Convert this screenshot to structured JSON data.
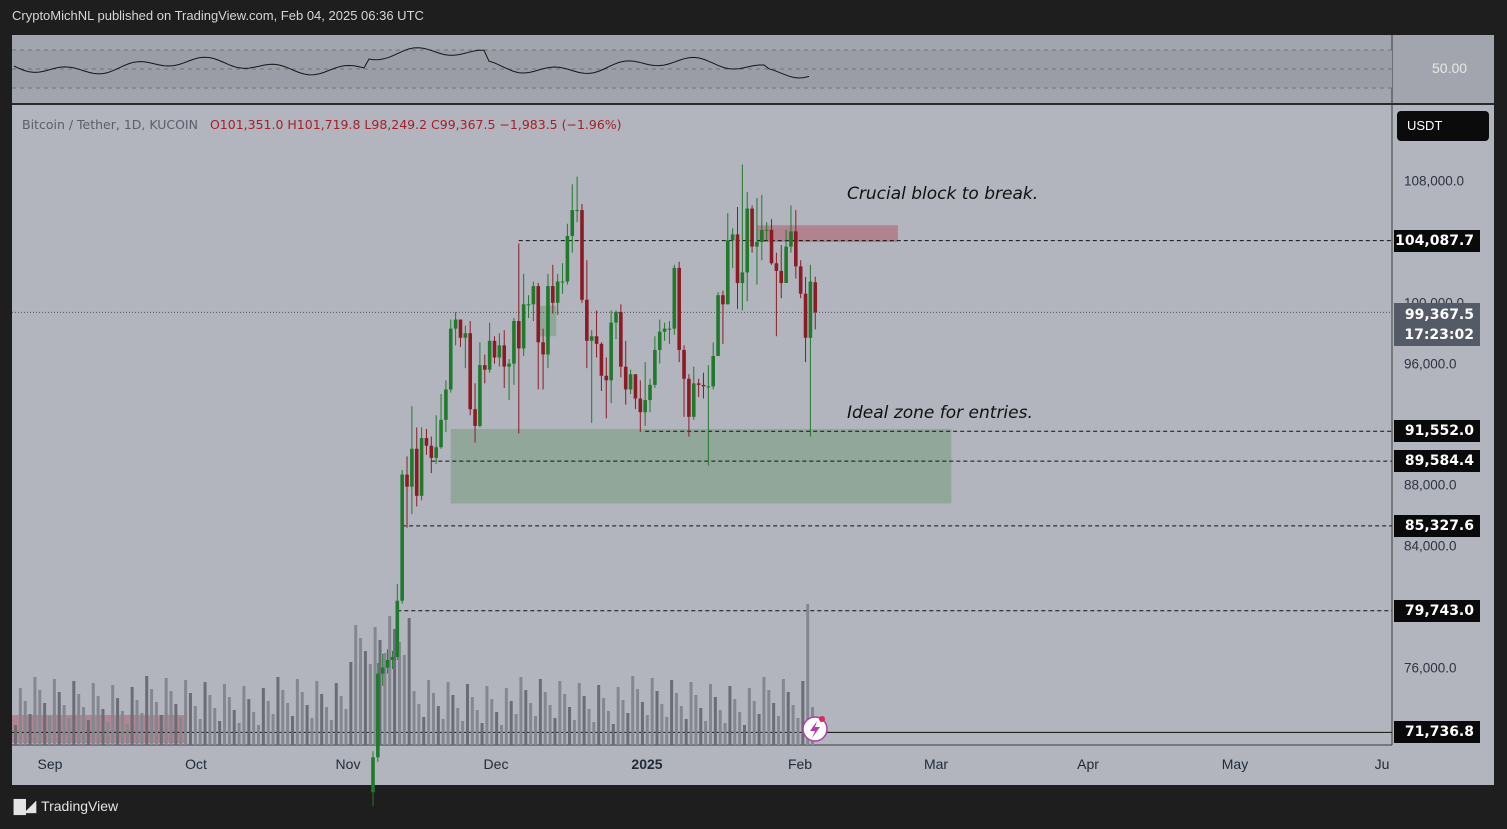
{
  "header": {
    "text": "CryptoMichNL published on TradingView.com, Feb 04, 2025 06:36 UTC"
  },
  "footer": {
    "brand": "TradingView"
  },
  "legend": {
    "symbol": "Bitcoin / Tether, 1D, KUCOIN",
    "open": "O101,351.0",
    "high": "H101,719.8",
    "low": "L98,249.2",
    "close": "C99,367.5",
    "change": "−1,983.5 (−1.96%)"
  },
  "currency_button": "USDT",
  "rsi": {
    "level_label": "50.00"
  },
  "annotations": {
    "block": "Crucial block to break.",
    "zone": "Ideal zone for entries."
  },
  "current_price": {
    "value": "99,367.5",
    "countdown": "17:23:02"
  },
  "chart_data": {
    "type": "candlestick",
    "symbol": "Bitcoin / Tether",
    "timeframe": "1D",
    "exchange": "KUCOIN",
    "x_ticks": [
      "Sep",
      "Oct",
      "Nov",
      "Dec",
      "2025",
      "Feb",
      "Mar",
      "Apr",
      "May",
      "Ju"
    ],
    "y_ticks": [
      76000,
      84000,
      88000,
      96000,
      100000,
      108000
    ],
    "y_tick_labels": [
      "76,000.0",
      "84,000.0",
      "88,000.0",
      "96,000.0",
      "100,000.0",
      "108,000.0"
    ],
    "horizontal_levels": [
      {
        "value": 104087.7,
        "label": "104,087.7",
        "style": "dashed"
      },
      {
        "value": 91552.0,
        "label": "91,552.0",
        "style": "dashed"
      },
      {
        "value": 89584.4,
        "label": "89,584.4",
        "style": "dashed"
      },
      {
        "value": 85327.6,
        "label": "85,327.6",
        "style": "dashed"
      },
      {
        "value": 79743.0,
        "label": "79,743.0",
        "style": "dashed"
      },
      {
        "value": 71736.8,
        "label": "71,736.8",
        "style": "solid"
      }
    ],
    "zones": [
      {
        "name": "Crucial block to break.",
        "from": "2025-01-23",
        "to": "2025-02-21",
        "low": 104000,
        "high": 105100,
        "color": "#b07a86"
      },
      {
        "name": "Ideal zone for entries.",
        "from": "2024-11-21",
        "to": "2025-03-04",
        "low": 86800,
        "high": 91700,
        "color": "#8aa593"
      }
    ],
    "candles": [
      {
        "d": "2024-11-05",
        "o": 67800,
        "h": 70500,
        "l": 66900,
        "c": 70100
      },
      {
        "d": "2024-11-06",
        "o": 70100,
        "h": 76300,
        "l": 69800,
        "c": 75600
      },
      {
        "d": "2024-11-07",
        "o": 75600,
        "h": 76900,
        "l": 74800,
        "c": 76000
      },
      {
        "d": "2024-11-08",
        "o": 76000,
        "h": 77200,
        "l": 75600,
        "c": 76500
      },
      {
        "d": "2024-11-09",
        "o": 76500,
        "h": 77100,
        "l": 75900,
        "c": 76700
      },
      {
        "d": "2024-11-10",
        "o": 76700,
        "h": 81500,
        "l": 76500,
        "c": 80400
      },
      {
        "d": "2024-11-11",
        "o": 80400,
        "h": 89000,
        "l": 80200,
        "c": 88700
      },
      {
        "d": "2024-11-12",
        "o": 88700,
        "h": 89900,
        "l": 85200,
        "c": 87900
      },
      {
        "d": "2024-11-13",
        "o": 87900,
        "h": 93200,
        "l": 86100,
        "c": 90400
      },
      {
        "d": "2024-11-14",
        "o": 90400,
        "h": 91800,
        "l": 86600,
        "c": 87300
      },
      {
        "d": "2024-11-15",
        "o": 87300,
        "h": 91800,
        "l": 87000,
        "c": 91100
      },
      {
        "d": "2024-11-16",
        "o": 91100,
        "h": 91700,
        "l": 90000,
        "c": 90600
      },
      {
        "d": "2024-11-17",
        "o": 90600,
        "h": 91200,
        "l": 88800,
        "c": 89800
      },
      {
        "d": "2024-11-18",
        "o": 89800,
        "h": 92600,
        "l": 89400,
        "c": 90500
      },
      {
        "d": "2024-11-19",
        "o": 90500,
        "h": 94000,
        "l": 90400,
        "c": 92300
      },
      {
        "d": "2024-11-20",
        "o": 92300,
        "h": 94900,
        "l": 91500,
        "c": 94300
      },
      {
        "d": "2024-11-21",
        "o": 94300,
        "h": 98900,
        "l": 94100,
        "c": 98300
      },
      {
        "d": "2024-11-22",
        "o": 98300,
        "h": 99400,
        "l": 97200,
        "c": 98900
      },
      {
        "d": "2024-11-23",
        "o": 98900,
        "h": 98900,
        "l": 97100,
        "c": 97700
      },
      {
        "d": "2024-11-24",
        "o": 97700,
        "h": 98500,
        "l": 95700,
        "c": 98000
      },
      {
        "d": "2024-11-25",
        "o": 98000,
        "h": 98800,
        "l": 92600,
        "c": 93000
      },
      {
        "d": "2024-11-26",
        "o": 93000,
        "h": 94700,
        "l": 90800,
        "c": 91900
      },
      {
        "d": "2024-11-27",
        "o": 91900,
        "h": 97400,
        "l": 91800,
        "c": 95900
      },
      {
        "d": "2024-11-28",
        "o": 95900,
        "h": 96600,
        "l": 94700,
        "c": 95600
      },
      {
        "d": "2024-11-29",
        "o": 95600,
        "h": 98700,
        "l": 95400,
        "c": 97500
      },
      {
        "d": "2024-11-30",
        "o": 97500,
        "h": 97800,
        "l": 96000,
        "c": 96400
      },
      {
        "d": "2024-12-01",
        "o": 96400,
        "h": 98000,
        "l": 95800,
        "c": 97200
      },
      {
        "d": "2024-12-02",
        "o": 97200,
        "h": 98200,
        "l": 94400,
        "c": 95800
      },
      {
        "d": "2024-12-03",
        "o": 95800,
        "h": 96300,
        "l": 93600,
        "c": 96000
      },
      {
        "d": "2024-12-04",
        "o": 96000,
        "h": 99000,
        "l": 94600,
        "c": 98800
      },
      {
        "d": "2024-12-05",
        "o": 98800,
        "h": 103900,
        "l": 91400,
        "c": 97000
      },
      {
        "d": "2024-12-06",
        "o": 97000,
        "h": 101900,
        "l": 96500,
        "c": 99900
      },
      {
        "d": "2024-12-07",
        "o": 99900,
        "h": 100500,
        "l": 99000,
        "c": 99900
      },
      {
        "d": "2024-12-08",
        "o": 99900,
        "h": 101400,
        "l": 98800,
        "c": 101100
      },
      {
        "d": "2024-12-09",
        "o": 101100,
        "h": 101300,
        "l": 94300,
        "c": 97400
      },
      {
        "d": "2024-12-10",
        "o": 97400,
        "h": 98300,
        "l": 94300,
        "c": 96600
      },
      {
        "d": "2024-12-11",
        "o": 96600,
        "h": 101900,
        "l": 95700,
        "c": 101100
      },
      {
        "d": "2024-12-12",
        "o": 101100,
        "h": 102500,
        "l": 99300,
        "c": 100000
      },
      {
        "d": "2024-12-13",
        "o": 100000,
        "h": 101900,
        "l": 99200,
        "c": 101400
      },
      {
        "d": "2024-12-14",
        "o": 101400,
        "h": 102600,
        "l": 100600,
        "c": 101400
      },
      {
        "d": "2024-12-15",
        "o": 101400,
        "h": 105200,
        "l": 101200,
        "c": 104400
      },
      {
        "d": "2024-12-16",
        "o": 104400,
        "h": 107800,
        "l": 103300,
        "c": 106100
      },
      {
        "d": "2024-12-17",
        "o": 106100,
        "h": 108300,
        "l": 105300,
        "c": 106100
      },
      {
        "d": "2024-12-18",
        "o": 106100,
        "h": 106500,
        "l": 100000,
        "c": 100200
      },
      {
        "d": "2024-12-19",
        "o": 100200,
        "h": 102800,
        "l": 95700,
        "c": 97500
      },
      {
        "d": "2024-12-20",
        "o": 97500,
        "h": 98200,
        "l": 92100,
        "c": 97800
      },
      {
        "d": "2024-12-21",
        "o": 97800,
        "h": 99500,
        "l": 96400,
        "c": 97300
      },
      {
        "d": "2024-12-22",
        "o": 97300,
        "h": 97400,
        "l": 94200,
        "c": 95200
      },
      {
        "d": "2024-12-23",
        "o": 95200,
        "h": 96400,
        "l": 92400,
        "c": 94900
      },
      {
        "d": "2024-12-24",
        "o": 94900,
        "h": 99500,
        "l": 93400,
        "c": 98700
      },
      {
        "d": "2024-12-25",
        "o": 98700,
        "h": 99500,
        "l": 97600,
        "c": 99400
      },
      {
        "d": "2024-12-26",
        "o": 99400,
        "h": 99900,
        "l": 95100,
        "c": 95800
      },
      {
        "d": "2024-12-27",
        "o": 95800,
        "h": 97500,
        "l": 93300,
        "c": 94300
      },
      {
        "d": "2024-12-28",
        "o": 94300,
        "h": 95600,
        "l": 94000,
        "c": 95300
      },
      {
        "d": "2024-12-29",
        "o": 95300,
        "h": 95300,
        "l": 93000,
        "c": 93700
      },
      {
        "d": "2024-12-30",
        "o": 93700,
        "h": 94900,
        "l": 91500,
        "c": 92800
      },
      {
        "d": "2024-12-31",
        "o": 92800,
        "h": 96100,
        "l": 91900,
        "c": 93600
      },
      {
        "d": "2025-01-01",
        "o": 93600,
        "h": 95000,
        "l": 92800,
        "c": 94600
      },
      {
        "d": "2025-01-02",
        "o": 94600,
        "h": 97800,
        "l": 94400,
        "c": 96900
      },
      {
        "d": "2025-01-03",
        "o": 96900,
        "h": 98900,
        "l": 96000,
        "c": 98100
      },
      {
        "d": "2025-01-04",
        "o": 98100,
        "h": 98700,
        "l": 97500,
        "c": 98300
      },
      {
        "d": "2025-01-05",
        "o": 98300,
        "h": 98800,
        "l": 97300,
        "c": 98300
      },
      {
        "d": "2025-01-06",
        "o": 98300,
        "h": 102500,
        "l": 97900,
        "c": 102300
      },
      {
        "d": "2025-01-07",
        "o": 102300,
        "h": 102700,
        "l": 96100,
        "c": 96900
      },
      {
        "d": "2025-01-08",
        "o": 96900,
        "h": 97200,
        "l": 92500,
        "c": 95000
      },
      {
        "d": "2025-01-09",
        "o": 95000,
        "h": 95300,
        "l": 91200,
        "c": 92500
      },
      {
        "d": "2025-01-10",
        "o": 92500,
        "h": 95800,
        "l": 92300,
        "c": 94700
      },
      {
        "d": "2025-01-11",
        "o": 94700,
        "h": 95000,
        "l": 93800,
        "c": 94600
      },
      {
        "d": "2025-01-12",
        "o": 94600,
        "h": 95400,
        "l": 93700,
        "c": 94500
      },
      {
        "d": "2025-01-13",
        "o": 94500,
        "h": 95900,
        "l": 89300,
        "c": 94500
      },
      {
        "d": "2025-01-14",
        "o": 94500,
        "h": 97400,
        "l": 94300,
        "c": 96500
      },
      {
        "d": "2025-01-15",
        "o": 96500,
        "h": 100700,
        "l": 96500,
        "c": 100500
      },
      {
        "d": "2025-01-16",
        "o": 100500,
        "h": 100800,
        "l": 97300,
        "c": 99900
      },
      {
        "d": "2025-01-17",
        "o": 99900,
        "h": 105900,
        "l": 99900,
        "c": 104100
      },
      {
        "d": "2025-01-18",
        "o": 104100,
        "h": 104900,
        "l": 102300,
        "c": 104500
      },
      {
        "d": "2025-01-19",
        "o": 104500,
        "h": 106300,
        "l": 99600,
        "c": 101300
      },
      {
        "d": "2025-01-20",
        "o": 101300,
        "h": 109100,
        "l": 99500,
        "c": 102000
      },
      {
        "d": "2025-01-21",
        "o": 102000,
        "h": 107300,
        "l": 100100,
        "c": 106200
      },
      {
        "d": "2025-01-22",
        "o": 106200,
        "h": 106400,
        "l": 103300,
        "c": 103700
      },
      {
        "d": "2025-01-23",
        "o": 103700,
        "h": 106900,
        "l": 101200,
        "c": 104000
      },
      {
        "d": "2025-01-24",
        "o": 104000,
        "h": 107100,
        "l": 102800,
        "c": 104800
      },
      {
        "d": "2025-01-25",
        "o": 104800,
        "h": 105300,
        "l": 104100,
        "c": 104800
      },
      {
        "d": "2025-01-26",
        "o": 104800,
        "h": 105500,
        "l": 102500,
        "c": 102600
      },
      {
        "d": "2025-01-27",
        "o": 102600,
        "h": 103300,
        "l": 97800,
        "c": 102100
      },
      {
        "d": "2025-01-28",
        "o": 102100,
        "h": 103800,
        "l": 100300,
        "c": 101300
      },
      {
        "d": "2025-01-29",
        "o": 101300,
        "h": 104800,
        "l": 101300,
        "c": 103700
      },
      {
        "d": "2025-01-30",
        "o": 103700,
        "h": 106400,
        "l": 103300,
        "c": 104700
      },
      {
        "d": "2025-01-31",
        "o": 104700,
        "h": 106100,
        "l": 101600,
        "c": 102400
      },
      {
        "d": "2025-02-01",
        "o": 102400,
        "h": 102800,
        "l": 100300,
        "c": 100600
      },
      {
        "d": "2025-02-02",
        "o": 100600,
        "h": 101700,
        "l": 96100,
        "c": 97700
      },
      {
        "d": "2025-02-03",
        "o": 97700,
        "h": 102500,
        "l": 91200,
        "c": 101400
      },
      {
        "d": "2025-02-04",
        "o": 101351,
        "h": 101719.8,
        "l": 98249.2,
        "c": 99367.5
      }
    ]
  }
}
